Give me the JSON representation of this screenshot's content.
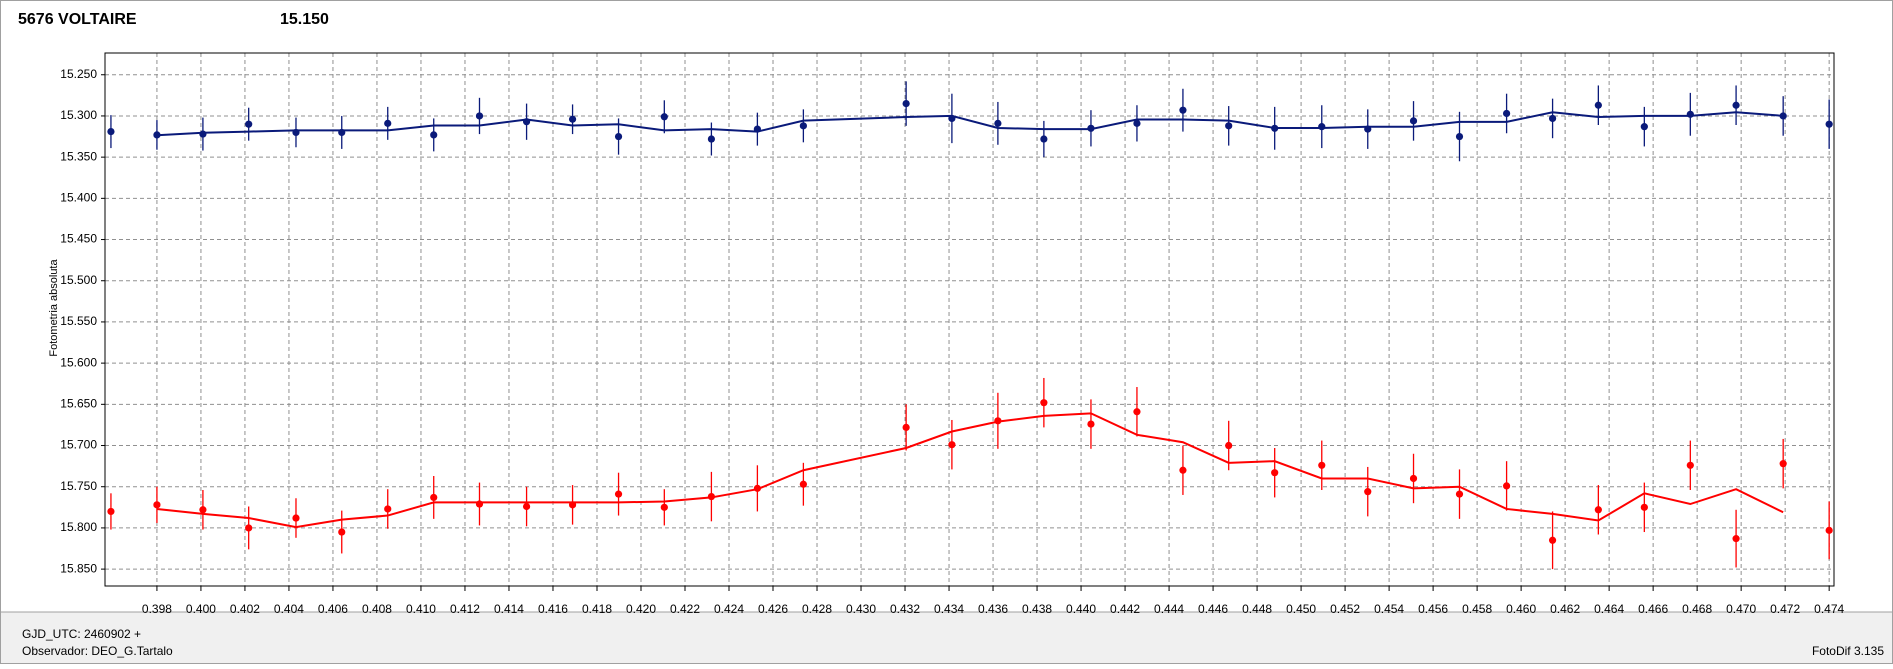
{
  "chart_data": {
    "type": "errorbar-line",
    "title": "5676 VOLTAIRE",
    "subtitle": "15.150",
    "y_label": "Fotometria absoluta",
    "x": [
      0.39591,
      0.398,
      0.40009,
      0.40217,
      0.40432,
      0.4064,
      0.40849,
      0.41058,
      0.41266,
      0.4148,
      0.41689,
      0.41898,
      0.42106,
      0.4232,
      0.42529,
      0.42738,
      0.43205,
      0.43413,
      0.43622,
      0.43831,
      0.44045,
      0.44254,
      0.44463,
      0.44671,
      0.4488,
      0.45094,
      0.45303,
      0.45511,
      0.4572,
      0.45934,
      0.46143,
      0.46351,
      0.4656,
      0.46769,
      0.46977,
      0.47191,
      0.474
    ],
    "series": [
      {
        "color": "#0a1a7a",
        "values": [
          15.319,
          15.323,
          15.322,
          15.31,
          15.32,
          15.32,
          15.309,
          15.323,
          15.3,
          15.307,
          15.304,
          15.325,
          15.301,
          15.328,
          15.316,
          15.312,
          15.285,
          15.303,
          15.309,
          15.328,
          15.315,
          15.309,
          15.293,
          15.312,
          15.315,
          15.313,
          15.316,
          15.306,
          15.325,
          15.297,
          15.303,
          15.287,
          15.313,
          15.298,
          15.287,
          15.3,
          15.31
        ],
        "errors": [
          0.02,
          0.018,
          0.02,
          0.02,
          0.018,
          0.02,
          0.02,
          0.02,
          0.022,
          0.022,
          0.018,
          0.022,
          0.02,
          0.02,
          0.02,
          0.02,
          0.027,
          0.03,
          0.026,
          0.022,
          0.022,
          0.022,
          0.026,
          0.024,
          0.026,
          0.026,
          0.024,
          0.024,
          0.03,
          0.024,
          0.024,
          0.024,
          0.024,
          0.026,
          0.024,
          0.024,
          0.03
        ],
        "fit": [
          null,
          15.3234,
          15.3204,
          15.319,
          15.3175,
          15.3175,
          15.3175,
          15.3116,
          15.3116,
          15.3043,
          15.3116,
          15.3101,
          15.3175,
          15.316,
          15.319,
          15.3057,
          15.3013,
          15.2999,
          15.3146,
          15.316,
          15.316,
          15.3043,
          15.3043,
          15.3057,
          15.3146,
          15.3146,
          15.3131,
          15.3131,
          15.3072,
          15.3072,
          15.2955,
          15.3013,
          15.2999,
          15.2999,
          15.2955,
          15.2999,
          null
        ]
      },
      {
        "color": "#ff0000",
        "values": [
          15.78,
          15.772,
          15.778,
          15.8,
          15.788,
          15.805,
          15.777,
          15.763,
          15.771,
          15.774,
          15.772,
          15.759,
          15.775,
          15.762,
          15.752,
          15.747,
          15.678,
          15.699,
          15.67,
          15.648,
          15.674,
          15.659,
          15.73,
          15.7,
          15.733,
          15.724,
          15.756,
          15.74,
          15.759,
          15.749,
          15.815,
          15.778,
          15.775,
          15.724,
          15.813,
          15.722,
          15.803
        ],
        "errors": [
          0.022,
          0.022,
          0.024,
          0.026,
          0.024,
          0.026,
          0.024,
          0.026,
          0.026,
          0.024,
          0.024,
          0.026,
          0.022,
          0.03,
          0.028,
          0.026,
          0.028,
          0.03,
          0.034,
          0.03,
          0.03,
          0.03,
          0.03,
          0.03,
          0.03,
          0.03,
          0.03,
          0.03,
          0.03,
          0.03,
          0.035,
          0.03,
          0.03,
          0.03,
          0.035,
          0.03,
          0.035
        ],
        "fit": [
          null,
          15.777,
          15.783,
          15.788,
          15.799,
          15.79,
          15.785,
          15.769,
          15.769,
          15.769,
          15.769,
          15.769,
          15.768,
          15.763,
          15.753,
          15.73,
          15.703,
          15.683,
          15.671,
          15.664,
          15.661,
          15.687,
          15.696,
          15.721,
          15.719,
          15.74,
          15.74,
          15.752,
          15.75,
          15.777,
          15.783,
          15.791,
          15.758,
          15.771,
          15.753,
          15.781,
          null
        ]
      }
    ],
    "xlim": [
      0.39564,
      0.47422
    ],
    "xticks": [
      0.398,
      {
        "value": 0.4,
        "label": "0.400"
      },
      0.402,
      0.404,
      0.406,
      0.408,
      {
        "value": 0.41,
        "label": "0.410"
      },
      0.412,
      0.414,
      0.416,
      0.418,
      {
        "value": 0.42,
        "label": "0.420"
      },
      0.422,
      0.424,
      0.426,
      0.428,
      {
        "value": 0.43,
        "label": "0.430"
      },
      0.432,
      0.434,
      0.436,
      0.438,
      {
        "value": 0.44,
        "label": "0.440"
      },
      0.442,
      0.444,
      0.446,
      0.448,
      {
        "value": 0.45,
        "label": "0.450"
      },
      0.452,
      0.454,
      0.456,
      0.458,
      {
        "value": 0.46,
        "label": "0.460"
      },
      0.462,
      0.464,
      0.466,
      0.468,
      {
        "value": 0.47,
        "label": "0.470"
      },
      0.472,
      0.474
    ],
    "ylim": [
      15.2236,
      15.8705
    ],
    "y_inverted": true,
    "yticks": [
      {
        "value": 15.25,
        "label": "15.250"
      },
      {
        "value": 15.3,
        "label": "15.300"
      },
      {
        "value": 15.35,
        "label": "15.350"
      },
      {
        "value": 15.4,
        "label": "15.400"
      },
      {
        "value": 15.45,
        "label": "15.450"
      },
      {
        "value": 15.5,
        "label": "15.500"
      },
      {
        "value": 15.55,
        "label": "15.550"
      },
      {
        "value": 15.6,
        "label": "15.600"
      },
      {
        "value": 15.65,
        "label": "15.650"
      },
      {
        "value": 15.7,
        "label": "15.700"
      },
      {
        "value": 15.75,
        "label": "15.750"
      },
      {
        "value": 15.8,
        "label": "15.800"
      },
      {
        "value": 15.85,
        "label": "15.850"
      }
    ],
    "grid": true,
    "title_color": "#ff0000",
    "subtitle_color": "#0a1a7a"
  },
  "footer": {
    "date_base": "GJD_UTC: 2460902 +",
    "observer": "Observador: DEO_G.Tartalo",
    "software": "FotoDif 3.135"
  }
}
